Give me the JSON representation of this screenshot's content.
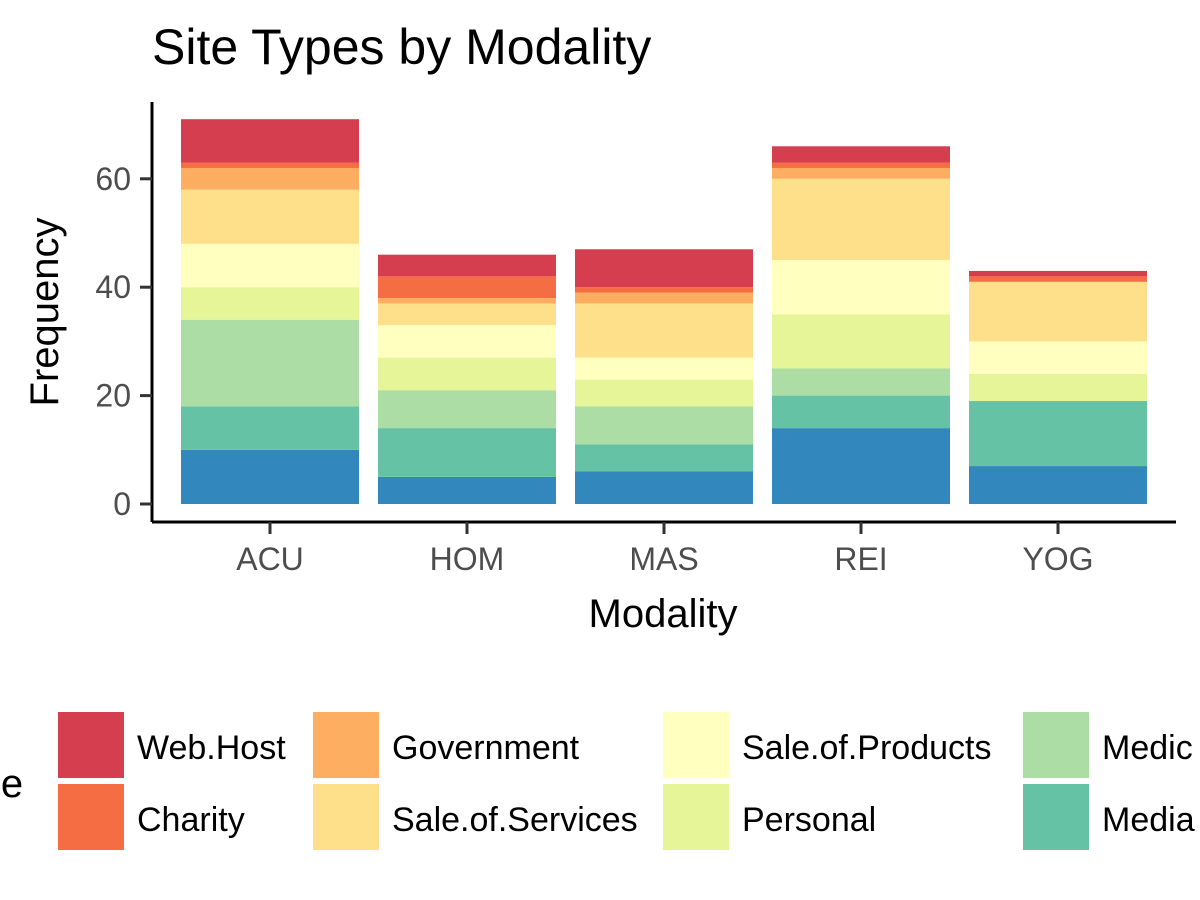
{
  "chart_data": {
    "type": "bar",
    "stacked": true,
    "title": "Site Types by Modality",
    "xlabel": "Modality",
    "ylabel": "Frequency",
    "categories": [
      "ACU",
      "HOM",
      "MAS",
      "REI",
      "YOG"
    ],
    "ylim": [
      0,
      75
    ],
    "yticks": [
      0,
      20,
      40,
      60
    ],
    "grid": false,
    "legend": {
      "title": "le",
      "position": "bottom"
    },
    "series": [
      {
        "name": "Media",
        "color": "#66c2a5",
        "values": [
          8,
          9,
          5,
          6,
          12
        ]
      },
      {
        "name": "Medic",
        "color": "#abdda4",
        "values": [
          16,
          7,
          7,
          5,
          0
        ]
      },
      {
        "name": "Personal",
        "color": "#e6f598",
        "values": [
          6,
          6,
          5,
          10,
          5
        ]
      },
      {
        "name": "Sale.of.Products",
        "color": "#ffffbf",
        "values": [
          8,
          6,
          4,
          10,
          6
        ]
      },
      {
        "name": "Sale.of.Services",
        "color": "#fee08b",
        "values": [
          10,
          4,
          10,
          15,
          11
        ]
      },
      {
        "name": "Government",
        "color": "#fdae61",
        "values": [
          4,
          1,
          2,
          2,
          0
        ]
      },
      {
        "name": "Charity",
        "color": "#f46d43",
        "values": [
          1,
          4,
          1,
          1,
          1
        ]
      },
      {
        "name": "Web.Host",
        "color": "#d53e4f",
        "values": [
          8,
          4,
          7,
          3,
          1
        ]
      }
    ],
    "base_series": {
      "color": "#3288bd",
      "values": [
        10,
        5,
        6,
        14,
        7
      ]
    }
  }
}
